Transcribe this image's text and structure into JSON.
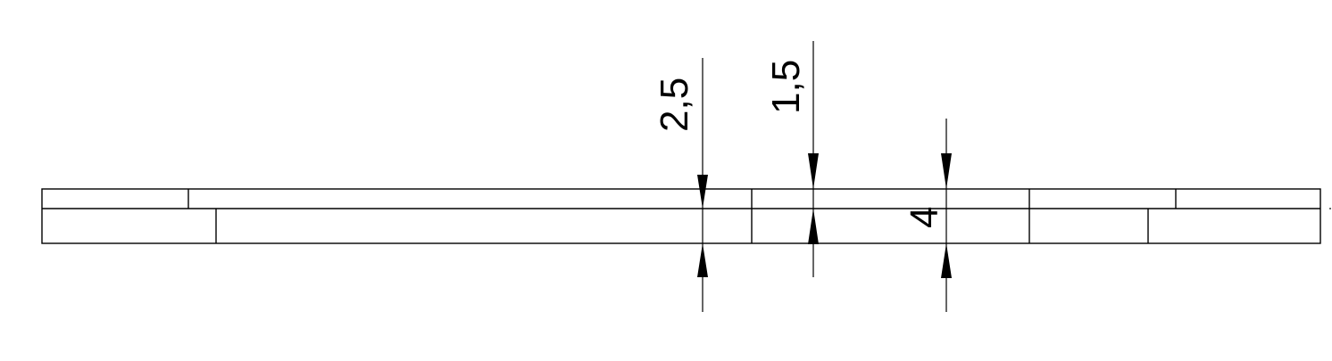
{
  "drawing": {
    "stroke_color": "#000000",
    "background_color": "#ffffff",
    "dimensions": [
      {
        "label": "2,5",
        "value": 2.5
      },
      {
        "label": "1,5",
        "value": 1.5
      },
      {
        "label": "4",
        "value": 4
      }
    ]
  }
}
